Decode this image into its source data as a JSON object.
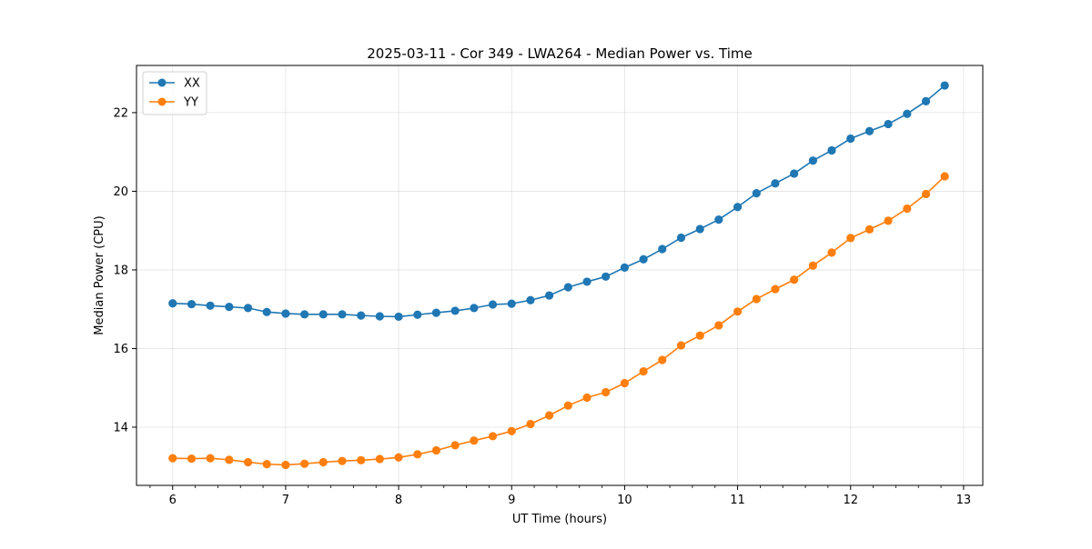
{
  "chart_data": {
    "type": "line",
    "title": "2025-03-11 - Cor 349 - LWA264 - Median Power vs. Time",
    "xlabel": "UT Time (hours)",
    "ylabel": "Median Power (CPU)",
    "xlim": [
      5.68,
      13.17
    ],
    "ylim": [
      12.52,
      23.2
    ],
    "xticks": [
      6,
      7,
      8,
      9,
      10,
      11,
      12,
      13
    ],
    "xtick_labels": [
      "6",
      "7",
      "8",
      "9",
      "10",
      "11",
      "12",
      "13"
    ],
    "xminor_step": 0.2,
    "yticks": [
      14,
      16,
      18,
      20,
      22
    ],
    "ytick_labels": [
      "14",
      "16",
      "18",
      "20",
      "22"
    ],
    "grid": true,
    "legend_position": "top-left",
    "x": [
      6.0,
      6.167,
      6.333,
      6.5,
      6.667,
      6.833,
      7.0,
      7.167,
      7.333,
      7.5,
      7.667,
      7.833,
      8.0,
      8.167,
      8.333,
      8.5,
      8.667,
      8.833,
      9.0,
      9.167,
      9.333,
      9.5,
      9.667,
      9.833,
      10.0,
      10.167,
      10.333,
      10.5,
      10.667,
      10.833,
      11.0,
      11.167,
      11.333,
      11.5,
      11.667,
      11.833,
      12.0,
      12.167,
      12.333,
      12.5,
      12.667,
      12.833
    ],
    "series": [
      {
        "name": "XX",
        "color": "#1f77b4",
        "values": [
          17.15,
          17.13,
          17.09,
          17.06,
          17.03,
          16.93,
          16.89,
          16.87,
          16.87,
          16.87,
          16.84,
          16.82,
          16.81,
          16.86,
          16.91,
          16.96,
          17.03,
          17.12,
          17.14,
          17.23,
          17.35,
          17.56,
          17.7,
          17.83,
          18.06,
          18.27,
          18.53,
          18.82,
          19.04,
          19.28,
          19.6,
          19.95,
          20.2,
          20.45,
          20.78,
          21.04,
          21.34,
          21.53,
          21.71,
          21.97,
          22.29,
          22.69
        ]
      },
      {
        "name": "YY",
        "color": "#ff7f0e",
        "values": [
          13.21,
          13.2,
          13.21,
          13.17,
          13.11,
          13.06,
          13.04,
          13.07,
          13.11,
          13.14,
          13.16,
          13.19,
          13.23,
          13.31,
          13.41,
          13.54,
          13.66,
          13.77,
          13.9,
          14.08,
          14.3,
          14.55,
          14.75,
          14.89,
          15.12,
          15.42,
          15.71,
          16.08,
          16.33,
          16.59,
          16.94,
          17.26,
          17.51,
          17.75,
          18.11,
          18.44,
          18.81,
          19.03,
          19.25,
          19.56,
          19.93,
          20.38
        ]
      }
    ]
  }
}
